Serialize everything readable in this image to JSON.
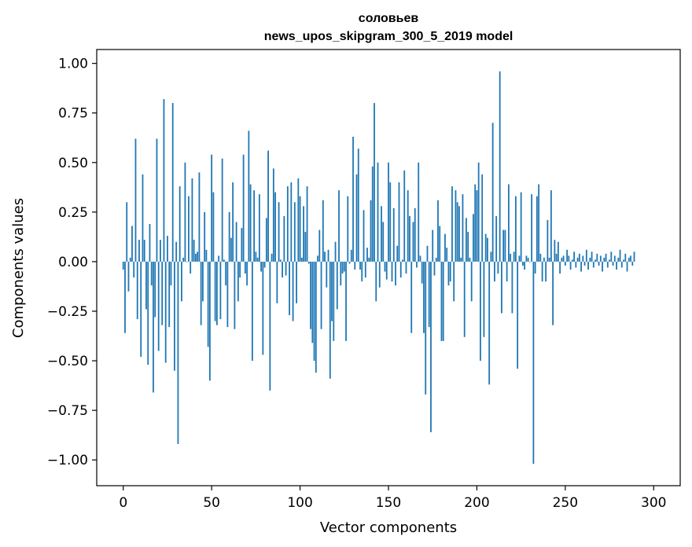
{
  "chart_data": {
    "type": "bar",
    "title": "соловьев",
    "subtitle": "news_upos_skipgram_300_5_2019 model",
    "xlabel": "Vector components",
    "ylabel": "Components values",
    "xlim": [
      -15,
      315
    ],
    "ylim": [
      -1.13,
      1.07
    ],
    "xticks": [
      0,
      50,
      100,
      150,
      200,
      250,
      300
    ],
    "xtick_labels": [
      "0",
      "50",
      "100",
      "150",
      "200",
      "250",
      "300"
    ],
    "yticks": [
      1.0,
      0.75,
      0.5,
      0.25,
      0.0,
      -0.25,
      -0.5,
      -0.75,
      -1.0
    ],
    "ytick_labels": [
      "1.00",
      "0.75",
      "0.50",
      "0.25",
      "0.00",
      "−0.25",
      "−0.50",
      "−0.75",
      "−1.00"
    ],
    "bar_color": "#1f77b4",
    "values": [
      -0.04,
      -0.36,
      0.3,
      -0.15,
      0.02,
      0.18,
      -0.08,
      0.62,
      -0.29,
      0.11,
      -0.48,
      0.44,
      0.11,
      -0.24,
      -0.52,
      0.19,
      -0.12,
      -0.66,
      -0.28,
      0.62,
      -0.45,
      0.11,
      -0.32,
      0.82,
      -0.51,
      0.13,
      -0.33,
      -0.12,
      0.8,
      -0.55,
      0.1,
      -0.92,
      0.38,
      -0.2,
      0.02,
      0.5,
      0.0,
      0.33,
      -0.06,
      0.42,
      0.11,
      0.04,
      0.05,
      0.45,
      -0.32,
      -0.2,
      0.25,
      0.06,
      -0.43,
      -0.6,
      0.54,
      0.35,
      -0.3,
      -0.32,
      0.03,
      -0.29,
      0.52,
      0.01,
      -0.12,
      -0.33,
      0.25,
      0.12,
      0.4,
      -0.34,
      0.2,
      -0.2,
      -0.08,
      0.17,
      0.54,
      -0.06,
      -0.12,
      0.66,
      0.39,
      -0.5,
      0.36,
      0.05,
      0.02,
      0.34,
      -0.05,
      -0.47,
      -0.03,
      0.22,
      0.56,
      -0.65,
      0.04,
      0.47,
      0.35,
      -0.21,
      0.3,
      0.01,
      -0.08,
      0.23,
      -0.07,
      0.38,
      -0.27,
      0.4,
      -0.3,
      0.3,
      -0.21,
      0.42,
      0.33,
      0.02,
      0.28,
      0.15,
      0.38,
      -0.01,
      -0.34,
      -0.41,
      -0.5,
      -0.56,
      0.03,
      0.16,
      -0.34,
      0.31,
      0.05,
      -0.13,
      0.06,
      -0.59,
      -0.3,
      -0.4,
      0.1,
      -0.24,
      0.36,
      -0.12,
      -0.06,
      -0.05,
      -0.4,
      0.33,
      -0.01,
      0.06,
      0.63,
      -0.04,
      0.44,
      0.57,
      -0.04,
      -0.1,
      0.26,
      -0.08,
      0.07,
      0.02,
      0.31,
      0.48,
      0.8,
      -0.2,
      0.5,
      -0.13,
      0.28,
      0.2,
      -0.05,
      -0.09,
      0.5,
      0.4,
      -0.1,
      0.27,
      -0.12,
      0.08,
      0.4,
      -0.08,
      0.01,
      0.46,
      -0.06,
      0.36,
      0.23,
      -0.36,
      0.2,
      0.27,
      -0.03,
      0.5,
      0.03,
      -0.11,
      -0.36,
      -0.67,
      0.08,
      -0.33,
      -0.86,
      0.16,
      -0.07,
      0.02,
      0.31,
      0.18,
      -0.4,
      -0.4,
      0.14,
      0.07,
      -0.12,
      -0.1,
      0.38,
      -0.2,
      0.36,
      0.3,
      0.28,
      0.02,
      0.34,
      -0.38,
      0.22,
      0.15,
      0.02,
      -0.2,
      0.24,
      0.39,
      0.36,
      0.5,
      -0.5,
      0.44,
      -0.38,
      0.14,
      0.12,
      -0.62,
      0.05,
      0.7,
      -0.1,
      0.23,
      -0.06,
      0.96,
      -0.26,
      0.16,
      0.16,
      -0.1,
      0.39,
      0.04,
      -0.26,
      0.05,
      0.33,
      -0.54,
      0.03,
      0.35,
      -0.02,
      -0.04,
      0.03,
      0.02,
      0.0,
      0.34,
      -1.02,
      -0.06,
      0.33,
      0.39,
      0.04,
      -0.1,
      0.02,
      -0.1,
      0.21,
      0.02,
      0.36,
      -0.32,
      0.11,
      0.04,
      0.1,
      -0.06,
      0.02,
      0.03,
      -0.02,
      0.06,
      0.03,
      -0.04,
      0.01,
      0.05,
      -0.03,
      0.02,
      0.04,
      -0.05,
      0.03,
      -0.02,
      0.06,
      -0.04,
      0.02,
      0.05,
      -0.03,
      0.01,
      0.04,
      -0.02,
      0.03,
      -0.05,
      0.02,
      0.04,
      -0.03,
      0.01,
      0.05,
      -0.02,
      0.03,
      -0.04,
      0.02,
      0.06,
      -0.03,
      0.01,
      0.04,
      -0.05,
      0.02,
      0.03,
      -0.02,
      0.05
    ]
  }
}
